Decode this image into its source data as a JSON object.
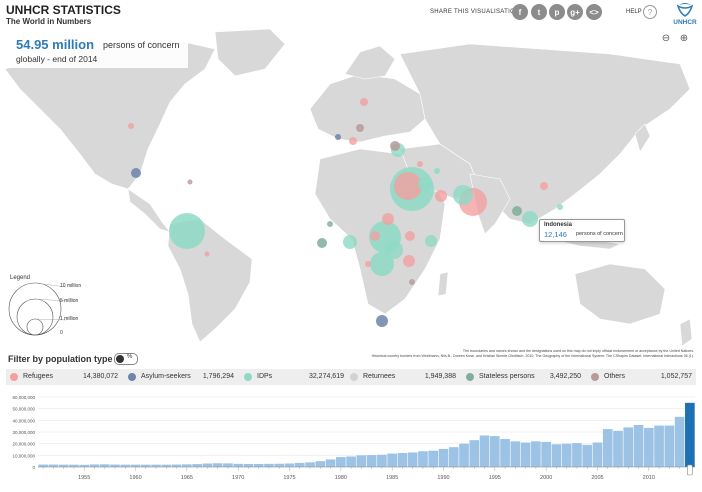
{
  "header": {
    "title": "UNHCR STATISTICS",
    "subtitle": "The World in Numbers"
  },
  "share": {
    "label": "SHARE THIS VISUALISATION",
    "buttons": [
      {
        "name": "facebook-icon",
        "glyph": "f"
      },
      {
        "name": "twitter-icon",
        "glyph": "t"
      },
      {
        "name": "pinterest-icon",
        "glyph": "p"
      },
      {
        "name": "googleplus-icon",
        "glyph": "g+"
      },
      {
        "name": "embed-icon",
        "glyph": "<>"
      }
    ]
  },
  "help": {
    "label": "HELP",
    "icon": "?"
  },
  "logo": {
    "text": "UNHCR"
  },
  "headline": {
    "number": "54.95 million",
    "unit": "persons of concern",
    "line2": "globally - end of 2014"
  },
  "tooltip": {
    "country": "Indonesia",
    "value": "12,146",
    "unit": "persons of concern"
  },
  "legend": {
    "title": "Legend",
    "labels": [
      "10 million",
      "5 million",
      "1 million",
      "0"
    ]
  },
  "credits": {
    "line1": "The boundaries and names shown and the designations used on this map do not imply official endorsement or acceptance by the United Nations.",
    "line2": "Historical country borders from Weidmann, Nils B., Doreen Kuse, and Kristian Skrede Gleditsch. 2010. The Geography of the International System: The CShapes Dataset. International Interactions 36 (1)."
  },
  "filter": {
    "title": "Filter by population type",
    "toggle_label": "%",
    "items": [
      {
        "label": "Refugees",
        "value": "14,380,072",
        "color": "#f2a0a0"
      },
      {
        "label": "Asylum-seekers",
        "value": "1,796,294",
        "color": "#6f84a8"
      },
      {
        "label": "IDPs",
        "value": "32,274,619",
        "color": "#8ed9c6"
      },
      {
        "label": "Returnees",
        "value": "1,949,388",
        "color": "#d2d2d2"
      },
      {
        "label": "Stateless persons",
        "value": "3,492,250",
        "color": "#7fae9c"
      },
      {
        "label": "Others",
        "value": "1,052,757",
        "color": "#b79a9a"
      }
    ]
  },
  "colors": {
    "bar": "#9cc3e6",
    "bar_selected": "#1f6fb3",
    "land": "#d8d8d8",
    "accent": "#2f7ab8"
  },
  "chart_data": {
    "type": "bar",
    "y_ticks": [
      "0",
      "10,000,000",
      "20,000,000",
      "30,000,000",
      "40,000,000",
      "50,000,000",
      "60,000,000"
    ],
    "x_ticks": [
      "1955",
      "1960",
      "1965",
      "1970",
      "1975",
      "1980",
      "1985",
      "1990",
      "1995",
      "2000",
      "2005",
      "2010"
    ],
    "ylim": [
      0,
      60000000
    ],
    "categories": [
      1951,
      1952,
      1953,
      1954,
      1955,
      1956,
      1957,
      1958,
      1959,
      1960,
      1961,
      1962,
      1963,
      1964,
      1965,
      1966,
      1967,
      1968,
      1969,
      1970,
      1971,
      1972,
      1973,
      1974,
      1975,
      1976,
      1977,
      1978,
      1979,
      1980,
      1981,
      1982,
      1983,
      1984,
      1985,
      1986,
      1987,
      1988,
      1989,
      1990,
      1991,
      1992,
      1993,
      1994,
      1995,
      1996,
      1997,
      1998,
      1999,
      2000,
      2001,
      2002,
      2003,
      2004,
      2005,
      2006,
      2007,
      2008,
      2009,
      2010,
      2011,
      2012,
      2013,
      2014
    ],
    "values": [
      2100000,
      2100000,
      2000000,
      2000000,
      1900000,
      2200000,
      2300000,
      2100000,
      2000000,
      2000000,
      2000000,
      2000000,
      2000000,
      2100000,
      2300000,
      2500000,
      3000000,
      3200000,
      3100000,
      2700000,
      2600000,
      2600000,
      2700000,
      2800000,
      3000000,
      3500000,
      4000000,
      5000000,
      6500000,
      8500000,
      9000000,
      10000000,
      10200000,
      10500000,
      11500000,
      12000000,
      12500000,
      13500000,
      14000000,
      15500000,
      17000000,
      20000000,
      23000000,
      27000000,
      26500000,
      24000000,
      22000000,
      21000000,
      22000000,
      21500000,
      19500000,
      20000000,
      20500000,
      19000000,
      21000000,
      32500000,
      31000000,
      34000000,
      36000000,
      33500000,
      35500000,
      35500000,
      43000000,
      55000000
    ],
    "selected": 2014
  }
}
